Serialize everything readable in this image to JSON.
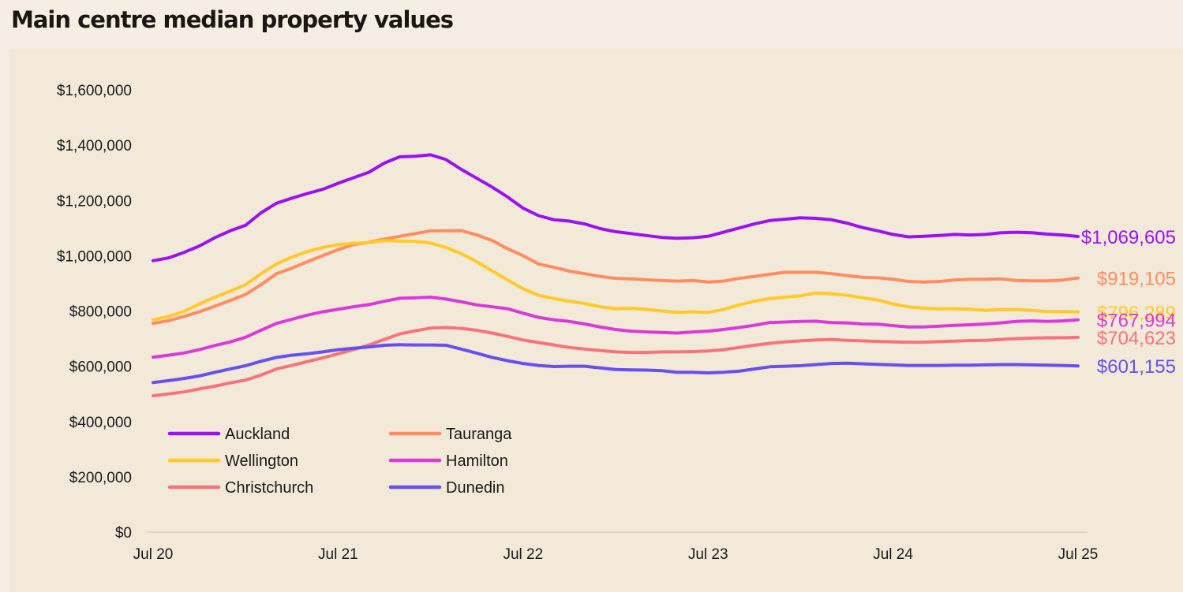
{
  "title": "Main centre median property values",
  "chart_data": {
    "type": "line",
    "title": "Main centre median property values",
    "xlabel": "",
    "ylabel": "",
    "x_ticks": [
      "Jul 20",
      "Jul 21",
      "Jul 22",
      "Jul 23",
      "Jul 24",
      "Jul 25"
    ],
    "y_ticks": [
      "$0",
      "$200,000",
      "$400,000",
      "$600,000",
      "$800,000",
      "$1,000,000",
      "$1,200,000",
      "$1,400,000",
      "$1,600,000"
    ],
    "ylim": [
      0,
      1600000
    ],
    "x_range_months": [
      0,
      60
    ],
    "grid": false,
    "legend_position": "bottom-left",
    "series": [
      {
        "name": "Auckland",
        "color": "#9b12f2",
        "end_label": "$1,069,605",
        "values": [
          982000,
          992000,
          1012000,
          1035000,
          1065000,
          1090000,
          1110000,
          1155000,
          1190000,
          1208000,
          1225000,
          1240000,
          1262000,
          1282000,
          1302000,
          1335000,
          1358000,
          1360000,
          1365000,
          1348000,
          1312000,
          1280000,
          1248000,
          1212000,
          1172000,
          1145000,
          1130000,
          1125000,
          1115000,
          1098000,
          1087000,
          1080000,
          1073000,
          1066000,
          1063000,
          1065000,
          1070000,
          1085000,
          1100000,
          1115000,
          1127000,
          1132000,
          1137000,
          1135000,
          1130000,
          1118000,
          1102000,
          1090000,
          1077000,
          1068000,
          1070000,
          1073000,
          1077000,
          1075000,
          1077000,
          1083000,
          1085000,
          1083000,
          1078000,
          1075000,
          1069605
        ]
      },
      {
        "name": "Tauranga",
        "color": "#ff8c61",
        "end_label": "$919,105",
        "values": [
          755000,
          765000,
          780000,
          797000,
          817000,
          838000,
          860000,
          895000,
          935000,
          955000,
          978000,
          1000000,
          1022000,
          1040000,
          1048000,
          1060000,
          1070000,
          1080000,
          1090000,
          1090000,
          1091000,
          1075000,
          1055000,
          1025000,
          1000000,
          970000,
          958000,
          944000,
          935000,
          925000,
          918000,
          916000,
          913000,
          910000,
          908000,
          910000,
          905000,
          908000,
          918000,
          925000,
          933000,
          940000,
          940000,
          940000,
          935000,
          928000,
          922000,
          920000,
          915000,
          907000,
          905000,
          907000,
          912000,
          915000,
          915000,
          916000,
          910000,
          909000,
          909000,
          912000,
          919105
        ]
      },
      {
        "name": "Wellington",
        "color": "#ffca28",
        "end_label": "$796,289",
        "values": [
          768000,
          780000,
          798000,
          825000,
          850000,
          872000,
          895000,
          935000,
          970000,
          995000,
          1015000,
          1030000,
          1040000,
          1045000,
          1047000,
          1055000,
          1053000,
          1052000,
          1046000,
          1030000,
          1007000,
          978000,
          945000,
          912000,
          880000,
          857000,
          845000,
          835000,
          827000,
          815000,
          808000,
          810000,
          806000,
          800000,
          795000,
          797000,
          795000,
          805000,
          822000,
          835000,
          845000,
          850000,
          855000,
          865000,
          862000,
          857000,
          848000,
          840000,
          825000,
          815000,
          810000,
          808000,
          808000,
          806000,
          802000,
          805000,
          805000,
          802000,
          798000,
          798000,
          796289
        ]
      },
      {
        "name": "Hamilton",
        "color": "#d93ad9",
        "end_label": "$767,994",
        "values": [
          633000,
          640000,
          648000,
          660000,
          675000,
          688000,
          705000,
          730000,
          755000,
          770000,
          785000,
          797000,
          806000,
          815000,
          823000,
          835000,
          846000,
          848000,
          850000,
          843000,
          833000,
          822000,
          815000,
          808000,
          792000,
          777000,
          768000,
          762000,
          753000,
          742000,
          733000,
          727000,
          724000,
          722000,
          720000,
          724000,
          727000,
          733000,
          740000,
          748000,
          758000,
          760000,
          762000,
          763000,
          758000,
          757000,
          753000,
          752000,
          747000,
          742000,
          742000,
          745000,
          748000,
          750000,
          753000,
          757000,
          762000,
          764000,
          762000,
          764000,
          767994
        ]
      },
      {
        "name": "Christchurch",
        "color": "#f8727a",
        "end_label": "$704,623",
        "values": [
          493000,
          500000,
          507000,
          518000,
          528000,
          540000,
          550000,
          568000,
          590000,
          603000,
          617000,
          630000,
          645000,
          660000,
          677000,
          697000,
          717000,
          728000,
          738000,
          740000,
          737000,
          730000,
          720000,
          708000,
          695000,
          686000,
          677000,
          668000,
          662000,
          657000,
          652000,
          650000,
          650000,
          652000,
          652000,
          653000,
          655000,
          660000,
          668000,
          676000,
          683000,
          688000,
          692000,
          695000,
          697000,
          694000,
          692000,
          690000,
          688000,
          687000,
          687000,
          689000,
          691000,
          693000,
          694000,
          697000,
          700000,
          702000,
          703000,
          703000,
          704623
        ]
      },
      {
        "name": "Dunedin",
        "color": "#6650f2",
        "end_label": "$601,155",
        "values": [
          541000,
          548000,
          556000,
          565000,
          578000,
          590000,
          602000,
          618000,
          632000,
          640000,
          645000,
          652000,
          660000,
          665000,
          670000,
          676000,
          678000,
          677000,
          677000,
          676000,
          662000,
          647000,
          632000,
          620000,
          610000,
          603000,
          599000,
          600000,
          600000,
          594000,
          588000,
          587000,
          586000,
          584000,
          578000,
          578000,
          576000,
          578000,
          582000,
          590000,
          598000,
          600000,
          602000,
          606000,
          610000,
          611000,
          609000,
          607000,
          605000,
          603000,
          603000,
          603000,
          604000,
          604000,
          605000,
          606000,
          606000,
          605000,
          604000,
          603000,
          601155
        ]
      }
    ]
  }
}
